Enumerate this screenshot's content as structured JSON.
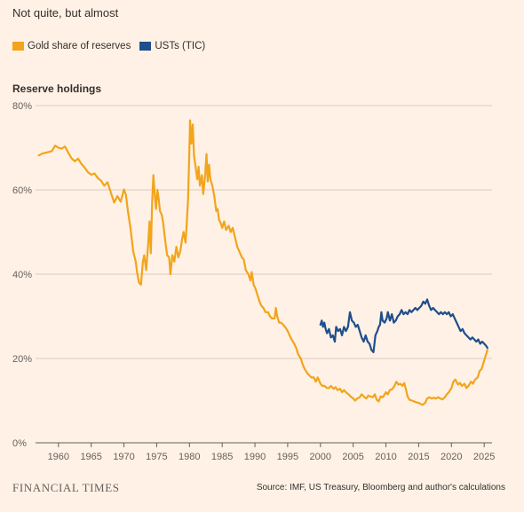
{
  "subtitle": "Not quite, but almost",
  "brand": "FINANCIAL TIMES",
  "source": "Source: IMF, US Treasury, Bloomberg and author's calculations",
  "chart_data": {
    "type": "line",
    "ylabel": "Reserve holdings",
    "xlim": [
      1956.5,
      2026.2
    ],
    "ylim": [
      0,
      80
    ],
    "yticks": [
      0,
      20,
      40,
      60,
      80
    ],
    "ytick_labels": [
      "0%",
      "20%",
      "40%",
      "60%",
      "80%"
    ],
    "xticks": [
      1960,
      1965,
      1970,
      1975,
      1980,
      1985,
      1990,
      1995,
      2000,
      2005,
      2010,
      2015,
      2020,
      2025
    ],
    "xtick_labels": [
      "1960",
      "1965",
      "1970",
      "1975",
      "1980",
      "1985",
      "1990",
      "1995",
      "2000",
      "2005",
      "2010",
      "2015",
      "2020",
      "2025"
    ],
    "grid": true,
    "legend_position": "top-left",
    "series": [
      {
        "name": "Gold share of reserves",
        "color": "#f2a41b",
        "points": [
          [
            1957.0,
            68.2
          ],
          [
            1957.5,
            68.6
          ],
          [
            1958.0,
            68.8
          ],
          [
            1958.5,
            69.0
          ],
          [
            1959.0,
            69.2
          ],
          [
            1959.5,
            70.5
          ],
          [
            1960.0,
            70.0
          ],
          [
            1960.5,
            69.8
          ],
          [
            1961.0,
            70.3
          ],
          [
            1961.5,
            68.8
          ],
          [
            1962.0,
            67.5
          ],
          [
            1962.5,
            66.8
          ],
          [
            1963.0,
            67.4
          ],
          [
            1963.5,
            66.2
          ],
          [
            1964.0,
            65.3
          ],
          [
            1964.5,
            64.2
          ],
          [
            1965.0,
            63.6
          ],
          [
            1965.5,
            63.9
          ],
          [
            1966.0,
            62.8
          ],
          [
            1966.5,
            62.2
          ],
          [
            1967.0,
            61.0
          ],
          [
            1967.5,
            61.8
          ],
          [
            1968.0,
            59.4
          ],
          [
            1968.5,
            57.0
          ],
          [
            1969.0,
            58.5
          ],
          [
            1969.5,
            57.2
          ],
          [
            1970.0,
            60.1
          ],
          [
            1970.3,
            58.8
          ],
          [
            1970.6,
            55.0
          ],
          [
            1971.0,
            51.0
          ],
          [
            1971.4,
            45.5
          ],
          [
            1971.8,
            43.0
          ],
          [
            1972.0,
            40.5
          ],
          [
            1972.3,
            38.0
          ],
          [
            1972.6,
            37.5
          ],
          [
            1972.9,
            43.0
          ],
          [
            1973.1,
            44.5
          ],
          [
            1973.4,
            41.0
          ],
          [
            1973.7,
            47.0
          ],
          [
            1973.9,
            52.5
          ],
          [
            1974.1,
            45.0
          ],
          [
            1974.3,
            57.0
          ],
          [
            1974.5,
            63.5
          ],
          [
            1974.7,
            59.0
          ],
          [
            1974.9,
            55.5
          ],
          [
            1975.1,
            60.0
          ],
          [
            1975.3,
            58.0
          ],
          [
            1975.5,
            55.0
          ],
          [
            1975.8,
            54.0
          ],
          [
            1976.0,
            52.0
          ],
          [
            1976.3,
            48.0
          ],
          [
            1976.6,
            44.5
          ],
          [
            1976.9,
            44.0
          ],
          [
            1977.1,
            40.0
          ],
          [
            1977.4,
            44.5
          ],
          [
            1977.7,
            43.0
          ],
          [
            1978.0,
            46.5
          ],
          [
            1978.3,
            44.0
          ],
          [
            1978.6,
            45.5
          ],
          [
            1978.9,
            48.5
          ],
          [
            1979.1,
            50.0
          ],
          [
            1979.4,
            47.5
          ],
          [
            1979.6,
            52.5
          ],
          [
            1979.8,
            58.0
          ],
          [
            1980.0,
            70.0
          ],
          [
            1980.1,
            76.5
          ],
          [
            1980.3,
            71.0
          ],
          [
            1980.5,
            75.5
          ],
          [
            1980.7,
            68.0
          ],
          [
            1980.9,
            66.0
          ],
          [
            1981.2,
            62.5
          ],
          [
            1981.4,
            65.5
          ],
          [
            1981.6,
            61.0
          ],
          [
            1981.9,
            63.5
          ],
          [
            1982.1,
            59.0
          ],
          [
            1982.4,
            63.5
          ],
          [
            1982.6,
            68.5
          ],
          [
            1982.8,
            62.0
          ],
          [
            1983.0,
            66.0
          ],
          [
            1983.2,
            62.5
          ],
          [
            1983.5,
            61.0
          ],
          [
            1983.8,
            58.5
          ],
          [
            1984.1,
            55.0
          ],
          [
            1984.3,
            55.5
          ],
          [
            1984.5,
            53.0
          ],
          [
            1984.8,
            52.0
          ],
          [
            1985.0,
            51.0
          ],
          [
            1985.3,
            52.5
          ],
          [
            1985.6,
            50.5
          ],
          [
            1986.0,
            51.5
          ],
          [
            1986.3,
            50.0
          ],
          [
            1986.6,
            51.0
          ],
          [
            1987.0,
            48.5
          ],
          [
            1987.3,
            46.5
          ],
          [
            1987.6,
            45.5
          ],
          [
            1988.0,
            44.0
          ],
          [
            1988.3,
            43.5
          ],
          [
            1988.6,
            41.0
          ],
          [
            1989.0,
            40.0
          ],
          [
            1989.3,
            38.5
          ],
          [
            1989.5,
            40.5
          ],
          [
            1989.8,
            37.5
          ],
          [
            1990.1,
            36.5
          ],
          [
            1990.4,
            35.0
          ],
          [
            1990.7,
            33.5
          ],
          [
            1991.0,
            32.5
          ],
          [
            1991.3,
            32.0
          ],
          [
            1991.6,
            31.0
          ],
          [
            1992.0,
            31.0
          ],
          [
            1992.3,
            30.0
          ],
          [
            1992.6,
            29.5
          ],
          [
            1993.0,
            29.5
          ],
          [
            1993.2,
            32.0
          ],
          [
            1993.4,
            30.0
          ],
          [
            1993.7,
            28.5
          ],
          [
            1994.0,
            28.5
          ],
          [
            1994.3,
            28.0
          ],
          [
            1994.6,
            27.5
          ],
          [
            1995.0,
            26.5
          ],
          [
            1995.3,
            25.5
          ],
          [
            1995.6,
            24.5
          ],
          [
            1996.0,
            23.5
          ],
          [
            1996.3,
            22.5
          ],
          [
            1996.6,
            21.0
          ],
          [
            1997.0,
            20.0
          ],
          [
            1997.3,
            18.5
          ],
          [
            1997.6,
            17.5
          ],
          [
            1998.0,
            16.5
          ],
          [
            1998.3,
            16.0
          ],
          [
            1998.6,
            15.5
          ],
          [
            1999.0,
            15.5
          ],
          [
            1999.3,
            14.5
          ],
          [
            1999.6,
            15.5
          ],
          [
            2000.0,
            14.0
          ],
          [
            2000.3,
            13.5
          ],
          [
            2000.6,
            13.5
          ],
          [
            2001.0,
            13.0
          ],
          [
            2001.3,
            13.0
          ],
          [
            2001.6,
            13.5
          ],
          [
            2002.0,
            12.8
          ],
          [
            2002.3,
            13.2
          ],
          [
            2002.6,
            12.5
          ],
          [
            2003.0,
            12.8
          ],
          [
            2003.3,
            12.0
          ],
          [
            2003.6,
            12.5
          ],
          [
            2004.0,
            11.8
          ],
          [
            2004.3,
            11.5
          ],
          [
            2004.6,
            11.0
          ],
          [
            2005.0,
            10.5
          ],
          [
            2005.3,
            10.0
          ],
          [
            2005.6,
            10.5
          ],
          [
            2006.0,
            10.8
          ],
          [
            2006.3,
            11.5
          ],
          [
            2006.6,
            11.0
          ],
          [
            2007.0,
            10.5
          ],
          [
            2007.3,
            11.2
          ],
          [
            2007.6,
            11.0
          ],
          [
            2008.0,
            10.8
          ],
          [
            2008.3,
            11.5
          ],
          [
            2008.6,
            10.2
          ],
          [
            2008.9,
            9.8
          ],
          [
            2009.2,
            11.0
          ],
          [
            2009.5,
            10.8
          ],
          [
            2009.8,
            11.5
          ],
          [
            2010.0,
            12.0
          ],
          [
            2010.3,
            11.5
          ],
          [
            2010.6,
            12.5
          ],
          [
            2011.0,
            12.8
          ],
          [
            2011.3,
            13.5
          ],
          [
            2011.6,
            14.5
          ],
          [
            2011.9,
            13.8
          ],
          [
            2012.2,
            14.0
          ],
          [
            2012.5,
            13.5
          ],
          [
            2012.8,
            14.2
          ],
          [
            2013.0,
            13.0
          ],
          [
            2013.3,
            11.0
          ],
          [
            2013.6,
            10.2
          ],
          [
            2014.0,
            10.0
          ],
          [
            2014.3,
            9.8
          ],
          [
            2014.6,
            9.6
          ],
          [
            2015.0,
            9.5
          ],
          [
            2015.3,
            9.2
          ],
          [
            2015.6,
            9.0
          ],
          [
            2016.0,
            9.5
          ],
          [
            2016.3,
            10.5
          ],
          [
            2016.6,
            10.8
          ],
          [
            2017.0,
            10.5
          ],
          [
            2017.3,
            10.7
          ],
          [
            2017.6,
            10.5
          ],
          [
            2018.0,
            10.8
          ],
          [
            2018.3,
            10.5
          ],
          [
            2018.6,
            10.3
          ],
          [
            2019.0,
            10.8
          ],
          [
            2019.3,
            11.5
          ],
          [
            2019.6,
            12.0
          ],
          [
            2020.0,
            13.0
          ],
          [
            2020.3,
            14.5
          ],
          [
            2020.6,
            15.0
          ],
          [
            2021.0,
            13.8
          ],
          [
            2021.3,
            14.2
          ],
          [
            2021.6,
            13.5
          ],
          [
            2022.0,
            14.0
          ],
          [
            2022.3,
            13.0
          ],
          [
            2022.6,
            13.5
          ],
          [
            2023.0,
            14.5
          ],
          [
            2023.3,
            14.0
          ],
          [
            2023.6,
            15.0
          ],
          [
            2024.0,
            15.5
          ],
          [
            2024.3,
            17.0
          ],
          [
            2024.6,
            17.5
          ],
          [
            2024.9,
            19.0
          ],
          [
            2025.2,
            20.5
          ],
          [
            2025.5,
            22.0
          ]
        ]
      },
      {
        "name": "USTs (TIC)",
        "color": "#1f4e8c",
        "points": [
          [
            2000.0,
            28.0
          ],
          [
            2000.2,
            29.0
          ],
          [
            2000.4,
            27.5
          ],
          [
            2000.6,
            28.5
          ],
          [
            2000.8,
            27.0
          ],
          [
            2001.0,
            26.0
          ],
          [
            2001.3,
            27.0
          ],
          [
            2001.6,
            25.0
          ],
          [
            2001.9,
            25.5
          ],
          [
            2002.2,
            24.0
          ],
          [
            2002.4,
            27.5
          ],
          [
            2002.7,
            26.5
          ],
          [
            2003.0,
            27.0
          ],
          [
            2003.3,
            25.5
          ],
          [
            2003.6,
            27.5
          ],
          [
            2003.9,
            26.5
          ],
          [
            2004.2,
            27.5
          ],
          [
            2004.5,
            31.0
          ],
          [
            2004.8,
            29.0
          ],
          [
            2005.1,
            28.5
          ],
          [
            2005.4,
            27.5
          ],
          [
            2005.7,
            28.0
          ],
          [
            2006.0,
            26.5
          ],
          [
            2006.3,
            25.0
          ],
          [
            2006.6,
            24.0
          ],
          [
            2006.9,
            25.5
          ],
          [
            2007.2,
            24.0
          ],
          [
            2007.5,
            23.5
          ],
          [
            2007.8,
            22.0
          ],
          [
            2008.1,
            21.5
          ],
          [
            2008.4,
            25.5
          ],
          [
            2008.7,
            26.5
          ],
          [
            2008.9,
            27.5
          ],
          [
            2009.1,
            28.0
          ],
          [
            2009.3,
            31.0
          ],
          [
            2009.5,
            29.0
          ],
          [
            2009.8,
            28.5
          ],
          [
            2010.1,
            29.5
          ],
          [
            2010.3,
            31.0
          ],
          [
            2010.6,
            29.0
          ],
          [
            2010.9,
            30.5
          ],
          [
            2011.2,
            28.5
          ],
          [
            2011.5,
            29.0
          ],
          [
            2011.8,
            30.0
          ],
          [
            2012.1,
            30.5
          ],
          [
            2012.4,
            31.5
          ],
          [
            2012.7,
            30.5
          ],
          [
            2013.0,
            31.0
          ],
          [
            2013.3,
            30.5
          ],
          [
            2013.6,
            31.5
          ],
          [
            2013.9,
            31.0
          ],
          [
            2014.2,
            31.5
          ],
          [
            2014.5,
            32.0
          ],
          [
            2014.8,
            31.5
          ],
          [
            2015.1,
            32.0
          ],
          [
            2015.4,
            32.5
          ],
          [
            2015.7,
            33.5
          ],
          [
            2016.0,
            33.0
          ],
          [
            2016.3,
            34.0
          ],
          [
            2016.6,
            32.5
          ],
          [
            2016.9,
            31.5
          ],
          [
            2017.2,
            32.0
          ],
          [
            2017.5,
            31.5
          ],
          [
            2017.8,
            31.0
          ],
          [
            2018.1,
            30.5
          ],
          [
            2018.4,
            31.0
          ],
          [
            2018.7,
            30.5
          ],
          [
            2019.0,
            31.0
          ],
          [
            2019.3,
            30.5
          ],
          [
            2019.6,
            31.0
          ],
          [
            2019.9,
            30.0
          ],
          [
            2020.2,
            30.5
          ],
          [
            2020.5,
            29.5
          ],
          [
            2020.8,
            28.5
          ],
          [
            2021.1,
            27.5
          ],
          [
            2021.4,
            26.5
          ],
          [
            2021.7,
            27.0
          ],
          [
            2022.0,
            26.0
          ],
          [
            2022.3,
            25.5
          ],
          [
            2022.6,
            25.0
          ],
          [
            2022.9,
            24.5
          ],
          [
            2023.2,
            25.0
          ],
          [
            2023.5,
            24.5
          ],
          [
            2023.8,
            24.0
          ],
          [
            2024.1,
            24.5
          ],
          [
            2024.4,
            23.5
          ],
          [
            2024.7,
            24.0
          ],
          [
            2025.0,
            23.5
          ],
          [
            2025.3,
            23.0
          ],
          [
            2025.5,
            22.5
          ]
        ]
      }
    ]
  }
}
